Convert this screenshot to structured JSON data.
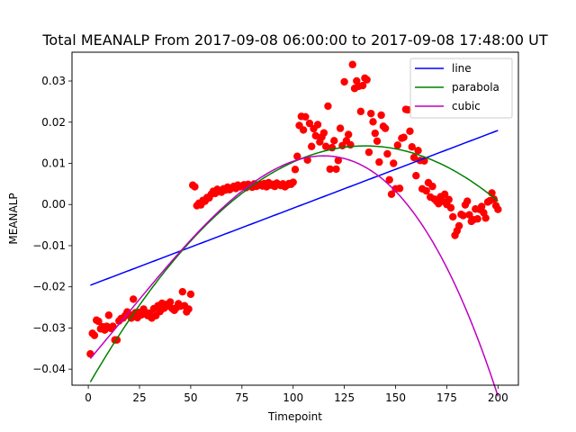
{
  "chart_data": {
    "type": "scatter",
    "title": "Total MEANALP From 2017-09-08 06:00:00 to 2017-09-08 17:48:00 UT",
    "xlabel": "Timepoint",
    "ylabel": "MEANALP",
    "xlim": [
      -7.95,
      209.95
    ],
    "ylim": [
      -0.0439,
      0.037
    ],
    "xticks": [
      0,
      25,
      50,
      75,
      100,
      125,
      150,
      175,
      200
    ],
    "yticks": [
      -0.04,
      -0.03,
      -0.02,
      -0.01,
      0.0,
      0.01,
      0.02,
      0.03
    ],
    "xtick_labels": [
      "0",
      "25",
      "50",
      "75",
      "100",
      "125",
      "150",
      "175",
      "200"
    ],
    "ytick_labels": [
      "−0.04",
      "−0.03",
      "−0.02",
      "−0.01",
      "0.00",
      "0.01",
      "0.02",
      "0.03"
    ],
    "grid": false,
    "legend_position": "top-right",
    "observations": {
      "color": "#ff0000",
      "x": [
        1,
        2,
        3,
        4,
        5,
        6,
        7,
        8,
        9,
        10,
        11,
        12,
        13,
        14,
        15,
        16,
        17,
        18,
        19,
        20,
        21,
        22,
        23,
        24,
        25,
        26,
        27,
        28,
        29,
        30,
        31,
        32,
        33,
        34,
        35,
        36,
        37,
        38,
        39,
        40,
        41,
        42,
        43,
        44,
        45,
        46,
        47,
        48,
        49,
        50,
        51,
        52,
        53,
        54,
        55,
        56,
        57,
        58,
        59,
        60,
        61,
        62,
        63,
        64,
        65,
        66,
        67,
        68,
        69,
        70,
        71,
        72,
        73,
        74,
        75,
        76,
        77,
        78,
        79,
        80,
        81,
        82,
        83,
        84,
        85,
        86,
        87,
        88,
        89,
        90,
        91,
        92,
        93,
        94,
        95,
        96,
        97,
        98,
        99,
        100,
        101,
        102,
        103,
        104,
        105,
        106,
        107,
        108,
        109,
        110,
        111,
        112,
        113,
        114,
        115,
        116,
        117,
        118,
        119,
        120,
        121,
        122,
        123,
        124,
        125,
        126,
        127,
        128,
        129,
        130,
        131,
        132,
        133,
        134,
        135,
        136,
        137,
        138,
        139,
        140,
        141,
        142,
        143,
        144,
        145,
        146,
        147,
        148,
        149,
        150,
        151,
        152,
        153,
        154,
        155,
        156,
        157,
        158,
        159,
        160,
        161,
        162,
        163,
        164,
        165,
        166,
        167,
        168,
        169,
        170,
        171,
        172,
        173,
        174,
        175,
        176,
        177,
        178,
        179,
        180,
        181,
        182,
        183,
        184,
        185,
        186,
        187,
        188,
        189,
        190,
        191,
        192,
        193,
        194,
        195,
        196,
        197,
        198,
        199,
        200
      ],
      "y": [
        -0.0363,
        -0.0313,
        -0.0318,
        -0.0281,
        -0.0284,
        -0.0302,
        -0.0297,
        -0.0305,
        -0.0296,
        -0.0269,
        -0.0301,
        -0.0296,
        -0.0329,
        -0.0329,
        -0.0283,
        -0.0277,
        -0.0276,
        -0.027,
        -0.0261,
        -0.0267,
        -0.0276,
        -0.023,
        -0.0263,
        -0.0275,
        -0.0262,
        -0.0268,
        -0.0254,
        -0.0262,
        -0.027,
        -0.0264,
        -0.0276,
        -0.0253,
        -0.027,
        -0.0246,
        -0.026,
        -0.024,
        -0.0252,
        -0.0243,
        -0.0247,
        -0.0237,
        -0.0253,
        -0.0257,
        -0.0251,
        -0.0241,
        -0.0247,
        -0.0212,
        -0.0246,
        -0.0261,
        -0.0254,
        -0.0218,
        0.0047,
        0.0043,
        -0.0003,
        0.0003,
        -0.0001,
        0.001,
        0.0008,
        0.0017,
        0.0016,
        0.0025,
        0.0032,
        0.0027,
        0.0037,
        0.0033,
        0.003,
        0.0038,
        0.0035,
        0.0042,
        0.0036,
        0.004,
        0.0044,
        0.0039,
        0.0047,
        0.0043,
        0.0045,
        0.0048,
        0.0041,
        0.0049,
        0.0046,
        0.0042,
        0.005,
        0.0044,
        0.0047,
        0.0049,
        0.0045,
        0.0051,
        0.0043,
        0.0053,
        0.0047,
        0.0049,
        0.0044,
        0.0052,
        0.0048,
        0.0046,
        0.005,
        0.0043,
        0.0047,
        0.0051,
        0.0049,
        0.0054,
        0.0085,
        0.0117,
        0.0192,
        0.0214,
        0.0181,
        0.0213,
        0.0108,
        0.0197,
        0.0141,
        0.0184,
        0.0167,
        0.0194,
        0.0152,
        0.0164,
        0.0174,
        0.0141,
        0.0239,
        0.0086,
        0.0138,
        0.0155,
        0.0086,
        0.0107,
        0.0185,
        0.0143,
        0.0298,
        0.0155,
        0.017,
        0.0145,
        0.034,
        0.0282,
        0.03,
        0.0287,
        0.0226,
        0.0289,
        0.0307,
        0.0303,
        0.0127,
        0.0221,
        0.0201,
        0.0173,
        0.0154,
        0.0103,
        0.0217,
        0.019,
        0.0185,
        0.0123,
        0.006,
        0.0025,
        0.01,
        0.0038,
        0.0144,
        0.0039,
        0.0161,
        0.0163,
        0.0231,
        0.023,
        0.0178,
        0.014,
        0.0114,
        0.007,
        0.0131,
        0.0107,
        0.0038,
        0.0106,
        0.0033,
        0.0053,
        0.0018,
        0.0044,
        0.0013,
        0.0008,
        0.0002,
        0.0019,
        0.0008,
        0.0025,
        -0.0,
        0.0012,
        -0.0008,
        -0.003,
        -0.0075,
        -0.0064,
        -0.0052,
        -0.0024,
        -0.0027,
        -0.0001,
        0.0008,
        -0.0025,
        -0.0041,
        -0.0037,
        -0.0011,
        -0.0035,
        -0.0012,
        -0.0005,
        -0.002,
        -0.0033,
        0.0006,
        0.0009,
        0.0028,
        0.0013,
        -0.0003,
        -0.0012
      ]
    },
    "series": [
      {
        "name": "line",
        "color": "#0000ff",
        "kind": "poly",
        "coeffs": [
          -0.0198,
          0.000189
        ]
      },
      {
        "name": "parabola",
        "color": "#008000",
        "kind": "poly",
        "coeffs": [
          -0.044,
          0.000862,
          -3.19e-06
        ]
      },
      {
        "name": "cubic",
        "color": "#bf00bf",
        "kind": "poly",
        "coeffs": [
          -0.038,
          0.000583,
          1.17e-06,
          -2.15e-08
        ]
      }
    ]
  }
}
